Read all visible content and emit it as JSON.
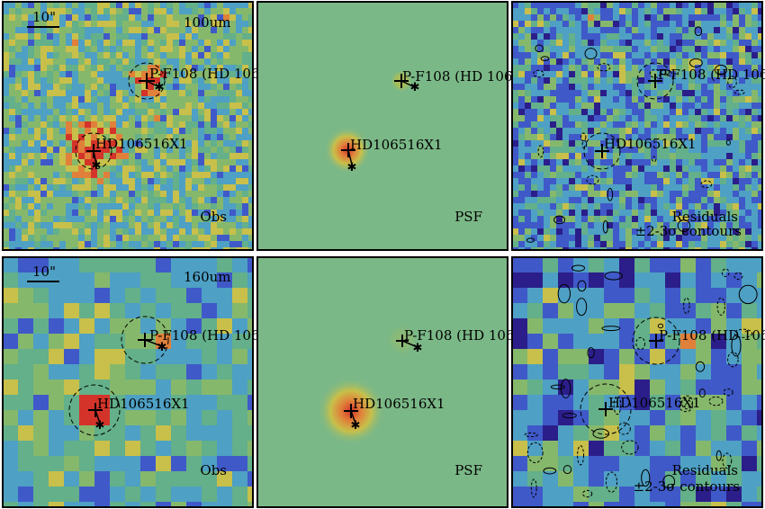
{
  "figure": {
    "rows": [
      {
        "band": "100um",
        "scale_bar": "10\"",
        "source_1_label": "P-F108 (HD 106",
        "source_2_label": "HD106516X1",
        "panels": [
          {
            "kind": "obs",
            "caption_lines": [
              "Obs"
            ]
          },
          {
            "kind": "psf",
            "caption_lines": [
              "PSF"
            ]
          },
          {
            "kind": "residual",
            "caption_lines": [
              "Residuals",
              "±2-3σ contours"
            ]
          }
        ]
      },
      {
        "band": "160um",
        "scale_bar": "10\"",
        "source_1_label": "P-F108 (HD 106",
        "source_2_label": "HD106516X1",
        "panels": [
          {
            "kind": "obs",
            "caption_lines": [
              "Obs"
            ]
          },
          {
            "kind": "psf",
            "caption_lines": [
              "PSF"
            ]
          },
          {
            "kind": "residual",
            "caption_lines": [
              "Residuals",
              "±2-3σ contours"
            ]
          }
        ]
      }
    ],
    "colors": {
      "deep": "#2b1e8a",
      "blue": "#3f59c9",
      "cyan": "#4ea0c4",
      "teal": "#63b08a",
      "green": "#86b86c",
      "yellow": "#c8c04a",
      "orange": "#e0803a",
      "red": "#d4332a",
      "psf_bg": "#7bb887",
      "frame": "#000000"
    }
  }
}
